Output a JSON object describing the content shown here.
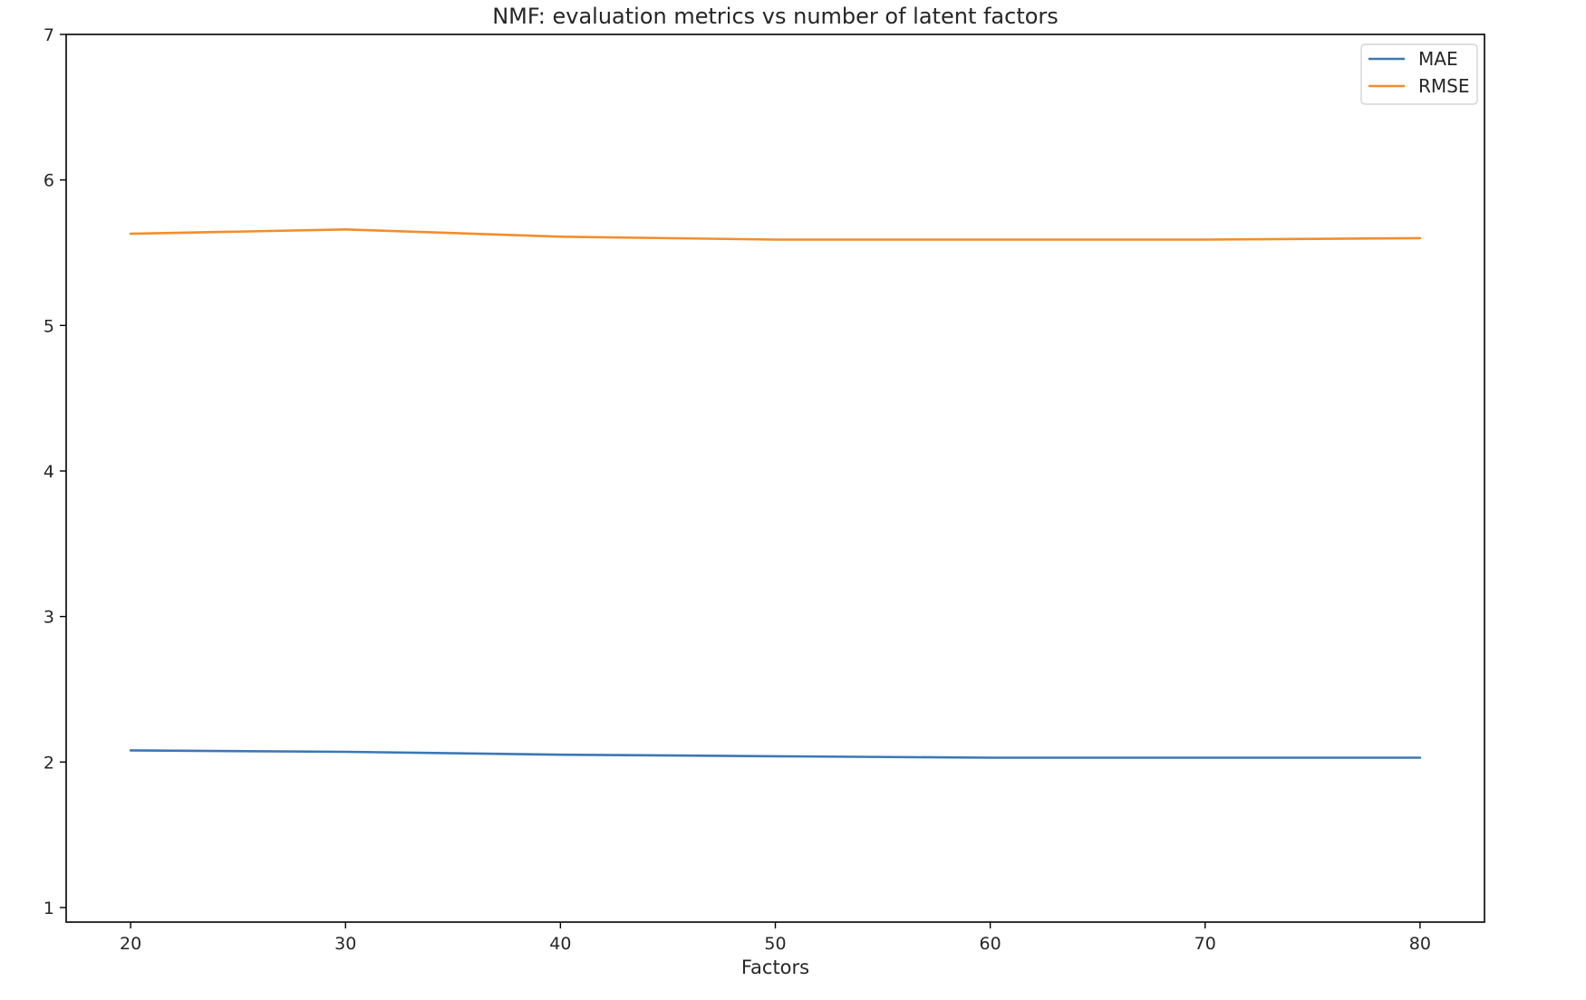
{
  "chart_data": {
    "type": "line",
    "title": "NMF: evaluation metrics vs number of latent factors",
    "xlabel": "Factors",
    "ylabel": "",
    "x": [
      20,
      30,
      40,
      50,
      60,
      70,
      80
    ],
    "xlim": [
      17,
      83
    ],
    "ylim": [
      0.9,
      7
    ],
    "xticks": [
      20,
      30,
      40,
      50,
      60,
      70,
      80
    ],
    "yticks": [
      1,
      2,
      3,
      4,
      5,
      6,
      7
    ],
    "grid": false,
    "legend_position": "top-right",
    "series": [
      {
        "name": "MAE",
        "color": "#3b78b5",
        "values": [
          2.08,
          2.07,
          2.05,
          2.04,
          2.03,
          2.03,
          2.03
        ]
      },
      {
        "name": "RMSE",
        "color": "#f28e2b",
        "values": [
          5.63,
          5.66,
          5.61,
          5.59,
          5.59,
          5.59,
          5.6
        ]
      }
    ]
  }
}
